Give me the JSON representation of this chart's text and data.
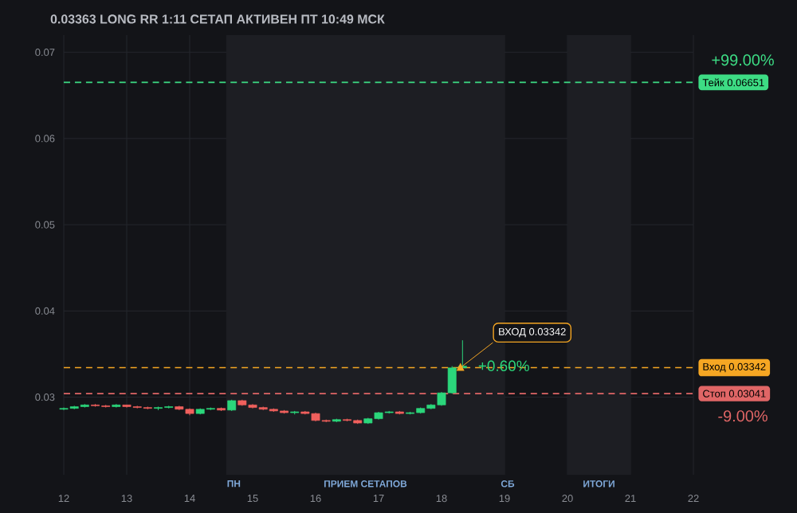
{
  "chart_data": {
    "type": "candlestick",
    "title": "0.03363 LONG RR 1:11 СЕТАП АКТИВЕН ПТ 10:49 МСК",
    "x": [
      12.0,
      12.167,
      12.333,
      12.5,
      12.667,
      12.833,
      13.0,
      13.167,
      13.333,
      13.5,
      13.667,
      13.833,
      14.0,
      14.167,
      14.333,
      14.5,
      14.667,
      14.833,
      15.0,
      15.167,
      15.333,
      15.5,
      15.667,
      15.833,
      16.0,
      16.167,
      16.333,
      16.5,
      16.667,
      16.833,
      17.0,
      17.167,
      17.333,
      17.5,
      17.667,
      17.833,
      18.0,
      18.167,
      18.333
    ],
    "ohlc": [
      [
        0.0286,
        0.0288,
        0.0285,
        0.0287
      ],
      [
        0.0287,
        0.029,
        0.0286,
        0.0289
      ],
      [
        0.0289,
        0.0292,
        0.0288,
        0.0291
      ],
      [
        0.0291,
        0.0292,
        0.0289,
        0.029
      ],
      [
        0.029,
        0.0291,
        0.0288,
        0.0289
      ],
      [
        0.0289,
        0.0292,
        0.0288,
        0.0291
      ],
      [
        0.0291,
        0.0291,
        0.0288,
        0.0289
      ],
      [
        0.0289,
        0.029,
        0.0287,
        0.0288
      ],
      [
        0.0288,
        0.0289,
        0.0286,
        0.0287
      ],
      [
        0.0287,
        0.0289,
        0.0285,
        0.0288
      ],
      [
        0.0288,
        0.029,
        0.0287,
        0.0289
      ],
      [
        0.0289,
        0.029,
        0.0285,
        0.0286
      ],
      [
        0.0286,
        0.0287,
        0.0279,
        0.0281
      ],
      [
        0.0281,
        0.0287,
        0.028,
        0.0286
      ],
      [
        0.0286,
        0.0288,
        0.0285,
        0.0287
      ],
      [
        0.0287,
        0.0288,
        0.0284,
        0.0285
      ],
      [
        0.0285,
        0.0297,
        0.0284,
        0.0296
      ],
      [
        0.0296,
        0.0297,
        0.029,
        0.0291
      ],
      [
        0.0291,
        0.0292,
        0.0287,
        0.0288
      ],
      [
        0.0288,
        0.0289,
        0.0285,
        0.0286
      ],
      [
        0.0286,
        0.0287,
        0.0283,
        0.0284
      ],
      [
        0.0284,
        0.0285,
        0.0281,
        0.0282
      ],
      [
        0.0282,
        0.0284,
        0.028,
        0.0283
      ],
      [
        0.0283,
        0.0284,
        0.028,
        0.0281
      ],
      [
        0.0281,
        0.0282,
        0.0272,
        0.0273
      ],
      [
        0.0273,
        0.0274,
        0.0271,
        0.0272
      ],
      [
        0.0272,
        0.0275,
        0.0271,
        0.0274
      ],
      [
        0.0274,
        0.0275,
        0.0272,
        0.0273
      ],
      [
        0.0273,
        0.0274,
        0.0269,
        0.027
      ],
      [
        0.027,
        0.0276,
        0.0269,
        0.0275
      ],
      [
        0.0275,
        0.0283,
        0.0274,
        0.0282
      ],
      [
        0.0282,
        0.0284,
        0.0281,
        0.0283
      ],
      [
        0.0283,
        0.0284,
        0.028,
        0.0281
      ],
      [
        0.0281,
        0.0283,
        0.028,
        0.0282
      ],
      [
        0.0282,
        0.0288,
        0.0281,
        0.0287
      ],
      [
        0.0287,
        0.0292,
        0.0286,
        0.0291
      ],
      [
        0.0291,
        0.0306,
        0.029,
        0.0305
      ],
      [
        0.0305,
        0.0336,
        0.0304,
        0.0334
      ],
      [
        0.0334,
        0.0366,
        0.0332,
        0.0336
      ]
    ],
    "colors": [
      "#2bd67b",
      "#2bd67b",
      "#2bd67b",
      "#f0605d",
      "#f0605d",
      "#2bd67b",
      "#f0605d",
      "#f0605d",
      "#f0605d",
      "#2bd67b",
      "#2bd67b",
      "#f0605d",
      "#f0605d",
      "#2bd67b",
      "#2bd67b",
      "#f0605d",
      "#2bd67b",
      "#f0605d",
      "#f0605d",
      "#f0605d",
      "#f0605d",
      "#f0605d",
      "#2bd67b",
      "#f0605d",
      "#f0605d",
      "#f0605d",
      "#2bd67b",
      "#f0605d",
      "#f0605d",
      "#2bd67b",
      "#2bd67b",
      "#2bd67b",
      "#f0605d",
      "#2bd67b",
      "#2bd67b",
      "#2bd67b",
      "#2bd67b",
      "#2bd67b",
      "#2bd67b"
    ],
    "xlim": [
      12,
      22
    ],
    "xticks": [
      12,
      13,
      14,
      15,
      16,
      17,
      18,
      19,
      20,
      21,
      22
    ],
    "ylim": [
      0.021,
      0.072
    ],
    "yticks": [
      0.03,
      0.04,
      0.05,
      0.06,
      0.07
    ],
    "grid": true,
    "ref_lines": [
      {
        "axis": "y",
        "value": 0.06651,
        "label": "Тейк 0.06651",
        "color": "#3ddc84",
        "line_style": "dashed"
      },
      {
        "axis": "y",
        "value": 0.03342,
        "label": "Вход 0.03342",
        "color": "#f5a623",
        "line_style": "dashed"
      },
      {
        "axis": "y",
        "value": 0.03041,
        "label": "Стоп 0.03041",
        "color": "#e06666",
        "line_style": "dashed"
      }
    ],
    "bands": [
      {
        "axis": "x",
        "from": 14.58,
        "to": 19.0,
        "label": "ПРИЕМ СЕТАПОВ",
        "color": "#1d1e23"
      },
      {
        "axis": "x",
        "from": 20.0,
        "to": 21.0,
        "label": "ИТОГИ",
        "color": "#1d1e23"
      }
    ],
    "annotations": [
      {
        "text": "ВХОД 0.03342",
        "x": 18.3,
        "y": 0.03342
      },
      {
        "text": "+0.60%",
        "x": 18.55,
        "y": 0.03363
      },
      "+99.00%",
      "-9.00%",
      "ПН",
      "СБ"
    ]
  }
}
